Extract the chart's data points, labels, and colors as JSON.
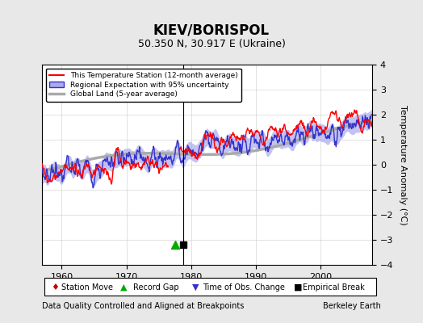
{
  "title": "KIEV/BORISPOL",
  "subtitle": "50.350 N, 30.917 E (Ukraine)",
  "xlabel_bottom": "Data Quality Controlled and Aligned at Breakpoints",
  "xlabel_right": "Berkeley Earth",
  "ylabel": "Temperature Anomaly (°C)",
  "xlim": [
    1957,
    2008
  ],
  "ylim": [
    -4,
    4
  ],
  "yticks": [
    -4,
    -3,
    -2,
    -1,
    0,
    1,
    2,
    3,
    4
  ],
  "xticks": [
    1960,
    1970,
    1980,
    1990,
    2000
  ],
  "bg_color": "#e8e8e8",
  "plot_bg_color": "#ffffff",
  "grid_color": "#cccccc",
  "station_color": "#ff0000",
  "regional_color": "#3333cc",
  "regional_fill_color": "#aaaaee",
  "global_color": "#aaaaaa",
  "legend_station": "This Temperature Station (12-month average)",
  "legend_regional": "Regional Expectation with 95% uncertainty",
  "legend_global": "Global Land (5-year average)",
  "record_gap_x": 1977.5,
  "record_gap_y": -3.2,
  "empirical_break_x": 1978.8,
  "empirical_break_y": -3.2,
  "vertical_line_x": 1978.8,
  "time_obs_change_x": 1978.8
}
